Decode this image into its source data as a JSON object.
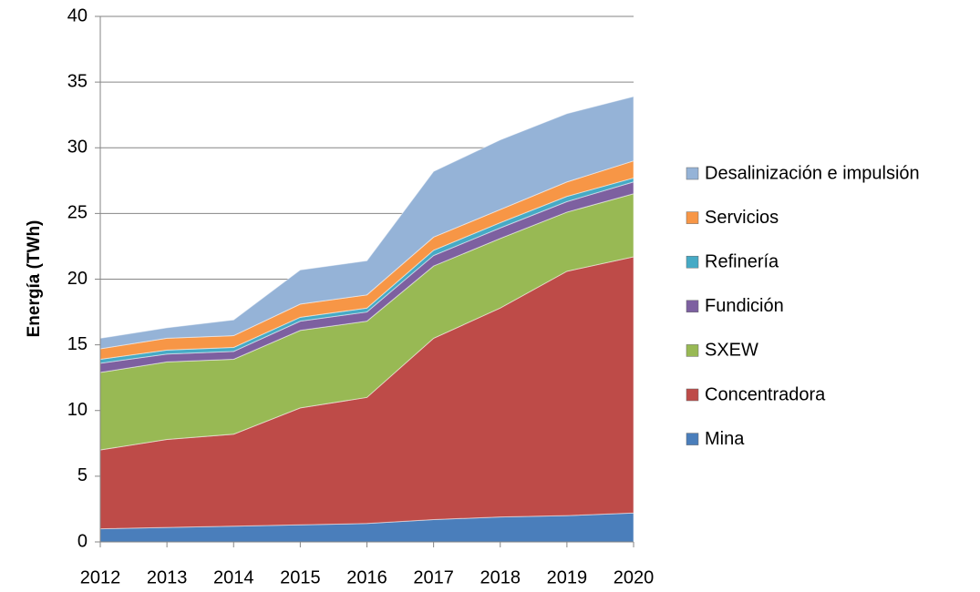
{
  "chart_data": {
    "type": "stacked_area",
    "y_label": "Energía (TWh)",
    "categories": [
      "2012",
      "2013",
      "2014",
      "2015",
      "2016",
      "2017",
      "2018",
      "2019",
      "2020"
    ],
    "ylim": [
      0,
      40
    ],
    "yticks": [
      0,
      5,
      10,
      15,
      20,
      25,
      30,
      35,
      40
    ],
    "grid": true,
    "legend": "right",
    "series": [
      {
        "name": "Mina",
        "color": "#4a7ebb",
        "values": [
          1.0,
          1.1,
          1.2,
          1.3,
          1.4,
          1.7,
          1.9,
          2.0,
          2.2
        ]
      },
      {
        "name": "Concentradora",
        "color": "#be4b48",
        "values": [
          6.0,
          6.7,
          7.0,
          8.9,
          9.6,
          13.8,
          15.9,
          18.6,
          19.5
        ]
      },
      {
        "name": "SXEW",
        "color": "#98b954",
        "values": [
          5.9,
          5.9,
          5.7,
          5.9,
          5.8,
          5.5,
          5.3,
          4.5,
          4.8
        ]
      },
      {
        "name": "Fundición",
        "color": "#7d60a0",
        "values": [
          0.7,
          0.6,
          0.6,
          0.7,
          0.7,
          0.8,
          0.8,
          0.8,
          0.9
        ]
      },
      {
        "name": "Refinería",
        "color": "#46aac5",
        "values": [
          0.3,
          0.3,
          0.3,
          0.3,
          0.3,
          0.4,
          0.4,
          0.4,
          0.3
        ]
      },
      {
        "name": "Servicios",
        "color": "#f79646",
        "values": [
          0.8,
          0.9,
          0.9,
          1.0,
          1.0,
          1.0,
          1.0,
          1.1,
          1.3
        ]
      },
      {
        "name": "Desalinización e impulsión",
        "color": "#95b3d7",
        "values": [
          0.8,
          0.8,
          1.2,
          2.6,
          2.6,
          5.0,
          5.3,
          5.2,
          4.9
        ]
      }
    ]
  }
}
